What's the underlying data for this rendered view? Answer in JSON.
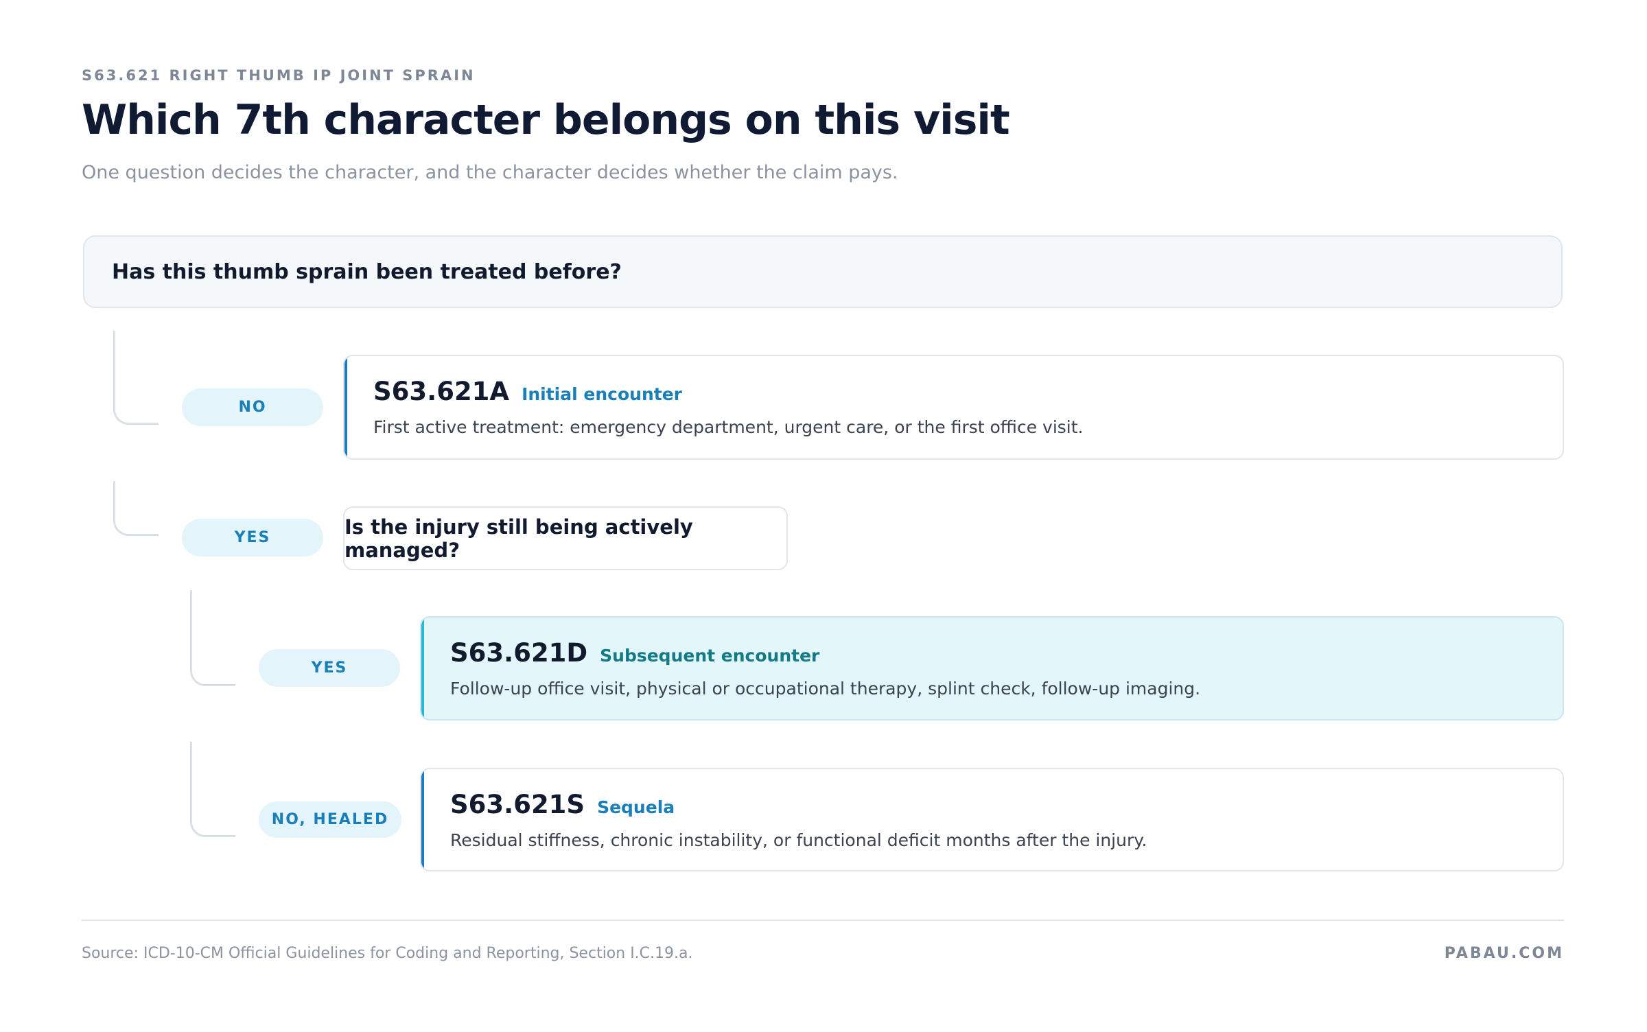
{
  "header": {
    "eyebrow": "S63.621 RIGHT THUMB IP JOINT SPRAIN",
    "title": "Which 7th character belongs on this visit",
    "subtitle": "One question decides the character, and the character decides whether the claim pays."
  },
  "question": "Has this thumb sprain been treated before?",
  "branches": [
    {
      "answer": "NO",
      "code": "S63.621A",
      "label": "Initial encounter",
      "description": "First active treatment: emergency department, urgent care, or the first office visit."
    },
    {
      "answer": "YES",
      "question": "Is the injury still being actively managed?",
      "branches": [
        {
          "answer": "YES",
          "code": "S63.621D",
          "label": "Subsequent encounter",
          "description": "Follow-up office visit, physical or occupational therapy, splint check, follow-up imaging."
        },
        {
          "answer": "NO, HEALED",
          "code": "S63.621S",
          "label": "Sequela",
          "description": "Residual stiffness, chronic instability, or functional deficit months after the injury."
        }
      ]
    }
  ],
  "footer": {
    "source": "Source: ICD-10-CM Official Guidelines for Coding and Reporting, Section I.C.19.a.",
    "brand": "PABAU.COM"
  }
}
